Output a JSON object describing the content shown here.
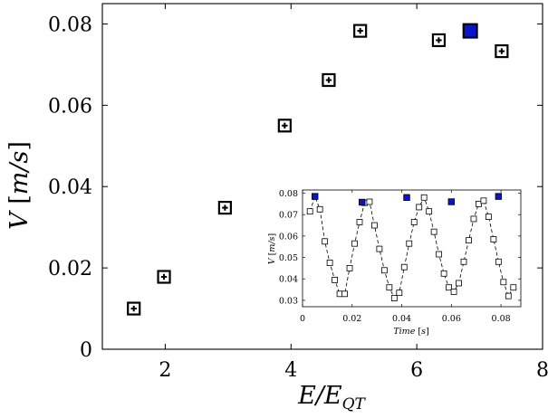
{
  "chart_data": [
    {
      "type": "scatter",
      "xlabel": "E/E_QT",
      "ylabel": "V [m/s]",
      "xlim": [
        1,
        8
      ],
      "ylim": [
        0,
        0.085
      ],
      "xticks": [
        2,
        4,
        6,
        8
      ],
      "yticks": [
        0,
        0.02,
        0.04,
        0.06,
        0.08
      ],
      "xtick_labels": [
        "2",
        "4",
        "6",
        "8"
      ],
      "ytick_labels": [
        "0",
        "0.02",
        "0.04",
        "0.06",
        "0.08"
      ],
      "grid": false,
      "series": [
        {
          "marker": "square-plus",
          "color": "#000000",
          "points": [
            {
              "x": 1.5,
              "y": 0.01
            },
            {
              "x": 1.98,
              "y": 0.0178
            },
            {
              "x": 2.95,
              "y": 0.0348
            },
            {
              "x": 3.9,
              "y": 0.055
            },
            {
              "x": 4.6,
              "y": 0.0662
            },
            {
              "x": 5.1,
              "y": 0.0783
            },
            {
              "x": 6.35,
              "y": 0.076
            },
            {
              "x": 6.85,
              "y": 0.0783,
              "highlight": true
            },
            {
              "x": 7.35,
              "y": 0.0733
            }
          ]
        }
      ],
      "highlight_color": "#0a14c8"
    },
    {
      "type": "line",
      "xlabel": "Time [s]",
      "ylabel": "V [m/s]",
      "xlim": [
        0,
        0.088
      ],
      "ylim": [
        0.027,
        0.0815
      ],
      "xticks": [
        0,
        0.02,
        0.04,
        0.06,
        0.08
      ],
      "yticks": [
        0.03,
        0.04,
        0.05,
        0.06,
        0.07,
        0.08
      ],
      "xtick_labels": [
        "0",
        "0.02",
        "0.04",
        "0.06",
        "0.08"
      ],
      "ytick_labels": [
        "0.03",
        "0.04",
        "0.05",
        "0.06",
        "0.07",
        "0.08"
      ],
      "grid": false,
      "line_style": "dashed",
      "highlight_color": "#0a14c8",
      "x": [
        0.003,
        0.005,
        0.007,
        0.009,
        0.011,
        0.013,
        0.015,
        0.017,
        0.019,
        0.021,
        0.023,
        0.025,
        0.027,
        0.029,
        0.031,
        0.033,
        0.035,
        0.037,
        0.039,
        0.041,
        0.043,
        0.045,
        0.047,
        0.049,
        0.051,
        0.053,
        0.055,
        0.057,
        0.059,
        0.061,
        0.063,
        0.065,
        0.067,
        0.069,
        0.071,
        0.073,
        0.075,
        0.077,
        0.079,
        0.081,
        0.083,
        0.085
      ],
      "y": [
        0.0715,
        0.0785,
        0.0725,
        0.0575,
        0.0475,
        0.0395,
        0.033,
        0.033,
        0.045,
        0.0565,
        0.0665,
        0.0755,
        0.076,
        0.065,
        0.054,
        0.044,
        0.036,
        0.031,
        0.0335,
        0.0455,
        0.0565,
        0.0665,
        0.0735,
        0.078,
        0.0715,
        0.062,
        0.0515,
        0.0425,
        0.036,
        0.034,
        0.038,
        0.048,
        0.058,
        0.068,
        0.075,
        0.0765,
        0.069,
        0.0585,
        0.048,
        0.0385,
        0.032,
        0.036
      ],
      "highlight_points": [
        {
          "x": 0.005,
          "y": 0.0785
        },
        {
          "x": 0.024,
          "y": 0.0758
        },
        {
          "x": 0.042,
          "y": 0.078
        },
        {
          "x": 0.06,
          "y": 0.076
        },
        {
          "x": 0.079,
          "y": 0.0785
        }
      ]
    }
  ]
}
